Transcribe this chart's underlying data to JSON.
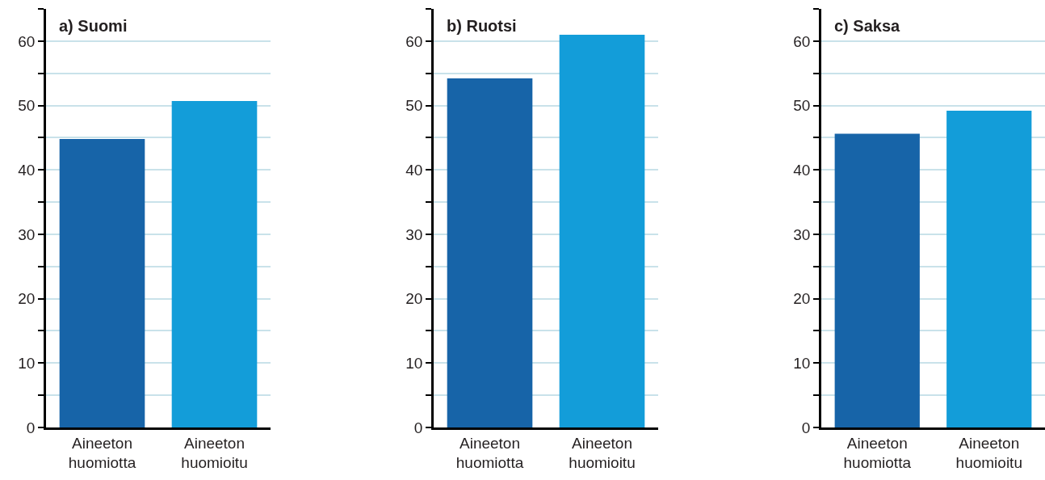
{
  "chart_data": [
    {
      "type": "bar",
      "title": "a) Suomi",
      "categories": [
        "Aineeton huomiotta",
        "Aineeton huomioitu"
      ],
      "values": [
        44.8,
        50.7
      ],
      "colors": [
        "#1764a8",
        "#139dd9"
      ],
      "ylim": [
        0,
        65
      ],
      "yticks": [
        0,
        {
          "value": 5,
          "label": null
        },
        10,
        {
          "value": 15,
          "label": null
        },
        20,
        {
          "value": 25,
          "label": null
        },
        30,
        {
          "value": 35,
          "label": null
        },
        40,
        {
          "value": 45,
          "label": null
        },
        50,
        {
          "value": 55,
          "label": null
        },
        60,
        {
          "value": 65,
          "label": null
        }
      ],
      "grid": "y"
    },
    {
      "type": "bar",
      "title": "b) Ruotsi",
      "categories": [
        "Aineeton huomiotta",
        "Aineeton huomioitu"
      ],
      "values": [
        54.2,
        61.0
      ],
      "colors": [
        "#1764a8",
        "#139dd9"
      ],
      "ylim": [
        0,
        65
      ],
      "yticks": [
        0,
        {
          "value": 5,
          "label": null
        },
        10,
        {
          "value": 15,
          "label": null
        },
        20,
        {
          "value": 25,
          "label": null
        },
        30,
        {
          "value": 35,
          "label": null
        },
        40,
        {
          "value": 45,
          "label": null
        },
        50,
        {
          "value": 55,
          "label": null
        },
        60,
        {
          "value": 65,
          "label": null
        }
      ],
      "grid": "y"
    },
    {
      "type": "bar",
      "title": "c) Saksa",
      "categories": [
        "Aineeton huomiotta",
        "Aineeton huomioitu"
      ],
      "values": [
        45.6,
        49.2
      ],
      "colors": [
        "#1764a8",
        "#139dd9"
      ],
      "ylim": [
        0,
        65
      ],
      "yticks": [
        0,
        {
          "value": 5,
          "label": null
        },
        10,
        {
          "value": 15,
          "label": null
        },
        20,
        {
          "value": 25,
          "label": null
        },
        30,
        {
          "value": 35,
          "label": null
        },
        40,
        {
          "value": 45,
          "label": null
        },
        50,
        {
          "value": 55,
          "label": null
        },
        60,
        {
          "value": 65,
          "label": null
        }
      ],
      "grid": "y"
    }
  ]
}
